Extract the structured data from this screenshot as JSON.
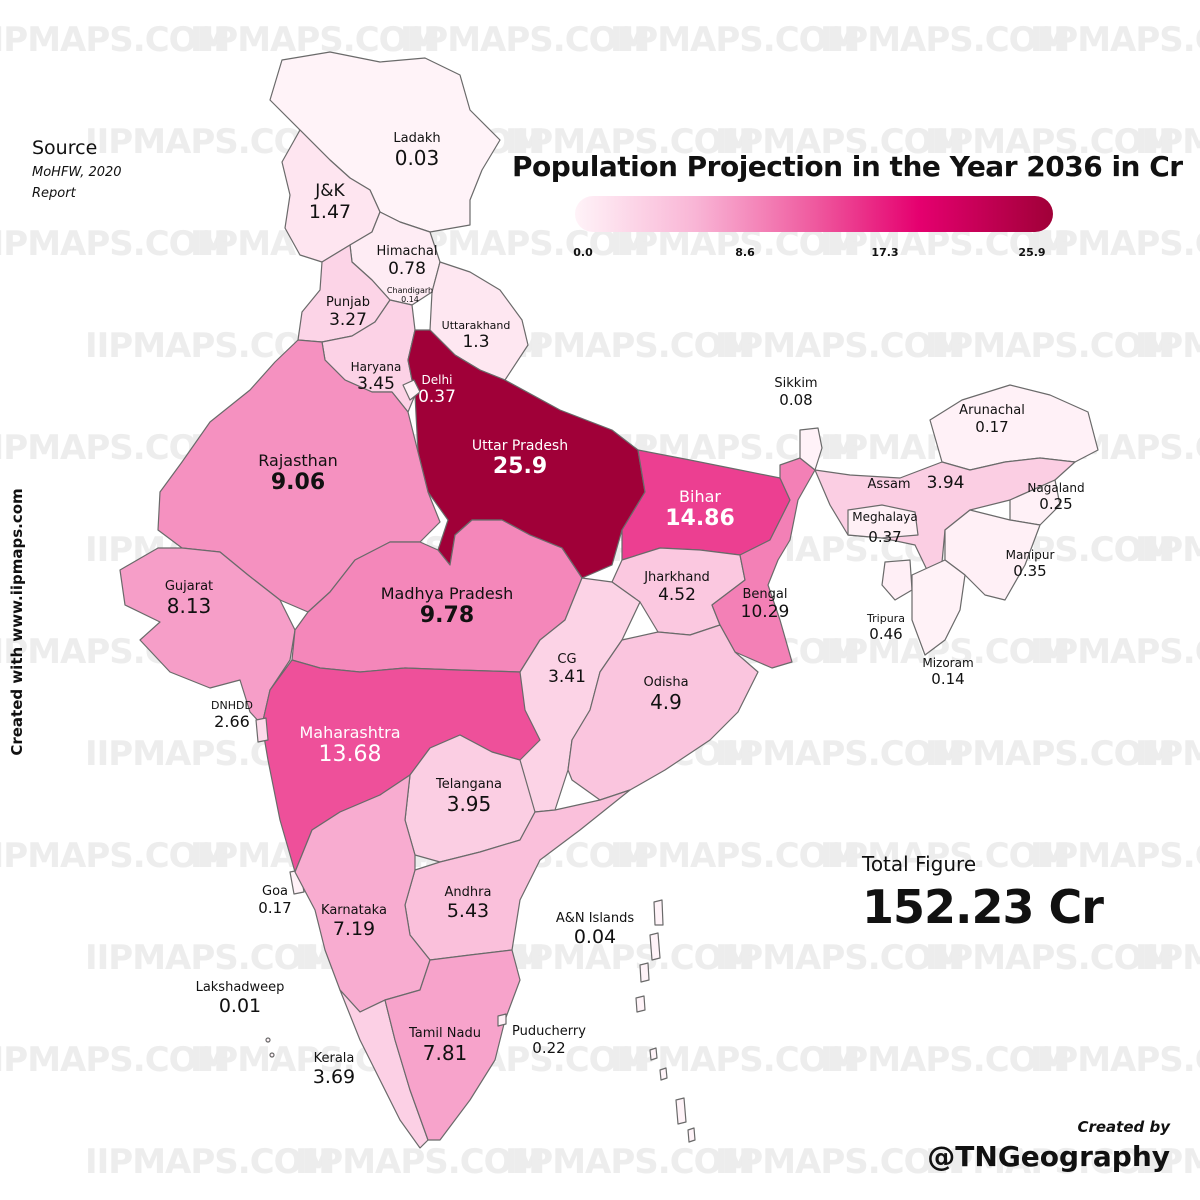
{
  "title": "Population Projection in the Year 2036 in Cr",
  "watermark": "IIPMAPS.COM",
  "source": {
    "heading": "Source",
    "line1": "MoHFW, 2020",
    "line2": "Report"
  },
  "vertical_text": "Created with www.iipmaps.com",
  "legend": {
    "ticks": [
      "0.0",
      "8.6",
      "17.3",
      "25.9"
    ],
    "min": 0,
    "max": 25.9,
    "colors": [
      "#fff3f8",
      "#f9b6d6",
      "#ef5a9f",
      "#e5006f",
      "#a00038"
    ]
  },
  "total": {
    "label": "Total Figure",
    "value": "152.23 Cr"
  },
  "credit": {
    "line1": "Created by",
    "line2": "@TNGeography"
  },
  "states": [
    {
      "name": "Ladakh",
      "value": "0.03"
    },
    {
      "name": "J&K",
      "value": "1.47"
    },
    {
      "name": "Himachal",
      "value": "0.78"
    },
    {
      "name": "Chandigarh",
      "value": "0.14"
    },
    {
      "name": "Punjab",
      "value": "3.27"
    },
    {
      "name": "Uttarakhand",
      "value": "1.3"
    },
    {
      "name": "Haryana",
      "value": "3.45"
    },
    {
      "name": "Delhi",
      "value": "0.37"
    },
    {
      "name": "Rajasthan",
      "value": "9.06"
    },
    {
      "name": "Uttar Pradesh",
      "value": "25.9"
    },
    {
      "name": "Bihar",
      "value": "14.86"
    },
    {
      "name": "Sikkim",
      "value": "0.08"
    },
    {
      "name": "Arunachal",
      "value": "0.17"
    },
    {
      "name": "Assam",
      "value": "3.94"
    },
    {
      "name": "Nagaland",
      "value": "0.25"
    },
    {
      "name": "Meghalaya",
      "value": "0.37"
    },
    {
      "name": "Manipur",
      "value": "0.35"
    },
    {
      "name": "Tripura",
      "value": "0.46"
    },
    {
      "name": "Mizoram",
      "value": "0.14"
    },
    {
      "name": "Gujarat",
      "value": "8.13"
    },
    {
      "name": "Madhya Pradesh",
      "value": "9.78"
    },
    {
      "name": "Jharkhand",
      "value": "4.52"
    },
    {
      "name": "Bengal",
      "value": "10.29"
    },
    {
      "name": "CG",
      "value": "3.41"
    },
    {
      "name": "Odisha",
      "value": "4.9"
    },
    {
      "name": "DNHDD",
      "value": "2.66"
    },
    {
      "name": "Maharashtra",
      "value": "13.68"
    },
    {
      "name": "Telangana",
      "value": "3.95"
    },
    {
      "name": "Goa",
      "value": "0.17"
    },
    {
      "name": "Karnataka",
      "value": "7.19"
    },
    {
      "name": "Andhra",
      "value": "5.43"
    },
    {
      "name": "A&N Islands",
      "value": "0.04"
    },
    {
      "name": "Lakshadweep",
      "value": "0.01"
    },
    {
      "name": "Tamil Nadu",
      "value": "7.81"
    },
    {
      "name": "Puducherry",
      "value": "0.22"
    },
    {
      "name": "Kerala",
      "value": "3.69"
    }
  ]
}
